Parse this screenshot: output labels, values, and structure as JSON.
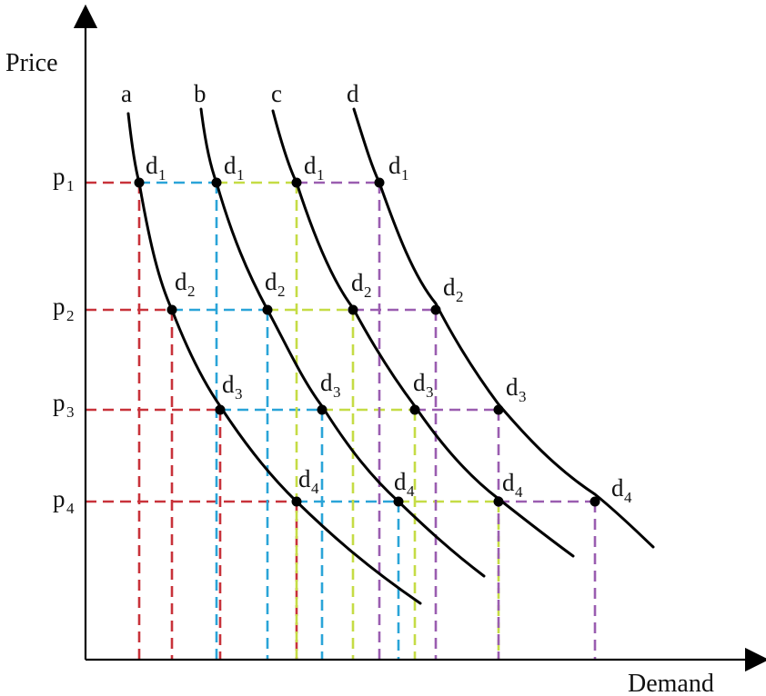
{
  "axes": {
    "y_label": "Price",
    "x_label": "Demand"
  },
  "price_levels": [
    {
      "name": "p",
      "sub": "1"
    },
    {
      "name": "p",
      "sub": "2"
    },
    {
      "name": "p",
      "sub": "3"
    },
    {
      "name": "p",
      "sub": "4"
    }
  ],
  "curves": [
    {
      "label": "a",
      "color": "#c8323a",
      "points": [
        {
          "name": "d",
          "sub": "1"
        },
        {
          "name": "d",
          "sub": "2"
        },
        {
          "name": "d",
          "sub": "3"
        },
        {
          "name": "d",
          "sub": "4"
        }
      ]
    },
    {
      "label": "b",
      "color": "#2aa4d8",
      "points": [
        {
          "name": "d",
          "sub": "1"
        },
        {
          "name": "d",
          "sub": "2"
        },
        {
          "name": "d",
          "sub": "3"
        },
        {
          "name": "d",
          "sub": "4"
        }
      ]
    },
    {
      "label": "c",
      "color": "#c5dc45",
      "points": [
        {
          "name": "d",
          "sub": "1"
        },
        {
          "name": "d",
          "sub": "2"
        },
        {
          "name": "d",
          "sub": "3"
        },
        {
          "name": "d",
          "sub": "4"
        }
      ]
    },
    {
      "label": "d",
      "color": "#9a5db0",
      "points": [
        {
          "name": "d",
          "sub": "1"
        },
        {
          "name": "d",
          "sub": "2"
        },
        {
          "name": "d",
          "sub": "3"
        },
        {
          "name": "d",
          "sub": "4"
        }
      ]
    }
  ]
}
